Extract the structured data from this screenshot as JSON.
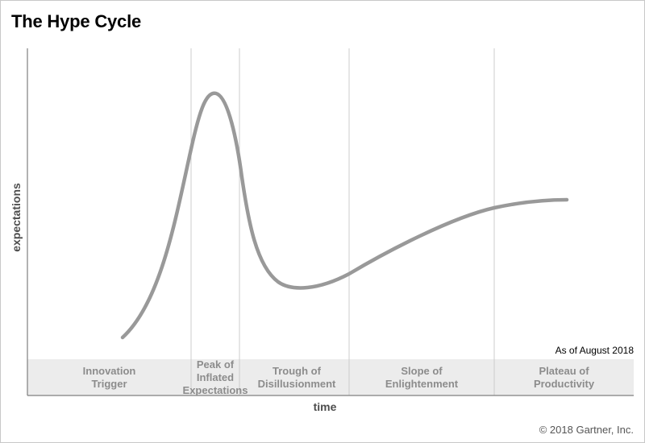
{
  "title": "The Hype Cycle",
  "y_axis_label": "expectations",
  "x_axis_label": "time",
  "as_of": "As of August 2018",
  "copyright": "© 2018 Gartner, Inc.",
  "phases": [
    {
      "label": "Innovation\nTrigger"
    },
    {
      "label": "Peak of\nInflated\nExpectations"
    },
    {
      "label": "Trough of\nDisillusionment"
    },
    {
      "label": "Slope of\nEnlightenment"
    },
    {
      "label": "Plateau of\nProductivity"
    }
  ],
  "colors": {
    "curve": "#999999",
    "band": "#ececec",
    "divider": "#cccccc",
    "axis": "#7f7f7f"
  }
}
